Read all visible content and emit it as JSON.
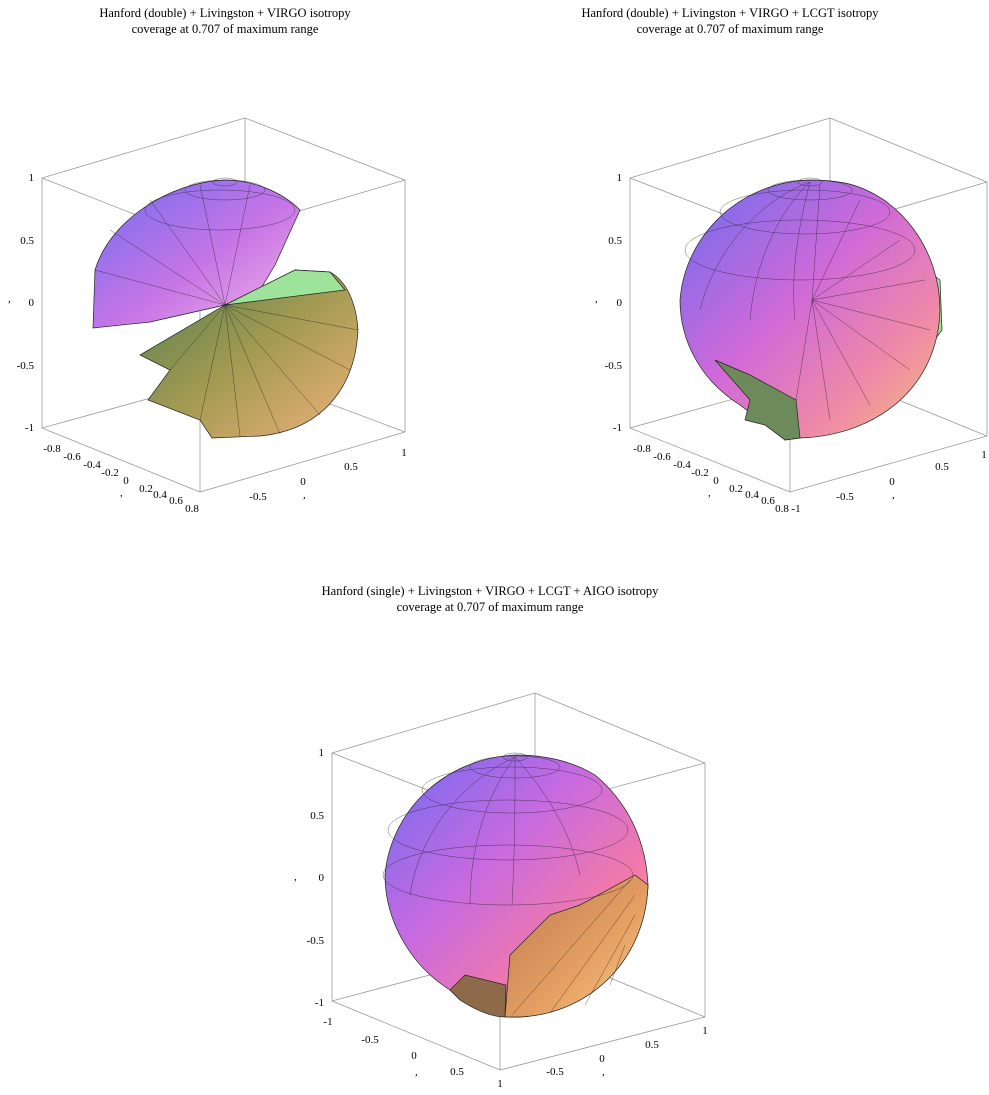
{
  "chart_data": [
    {
      "type": "surface3d",
      "title": "Hanford (double) + Livingston + VIRGO isotropy",
      "subtitle": "coverage at 0.707 of maximum range",
      "axes": {
        "z": {
          "range": [
            -1,
            1
          ],
          "ticks": [
            "1",
            "0.5",
            "0",
            "-0.5",
            "-1"
          ],
          "label": ","
        },
        "x": {
          "range": [
            -0.8,
            0.8
          ],
          "ticks": [
            "-0.8",
            "-0.6",
            "-0.4",
            "-0.2",
            "0",
            "0.2",
            "0.4",
            "0.6",
            "0.8"
          ],
          "label": ","
        },
        "y": {
          "range": [
            -1,
            1
          ],
          "ticks": [
            "-0.5",
            "0",
            "0.5",
            "1"
          ],
          "label": ","
        }
      },
      "detectors": [
        "Hanford (double)",
        "Livingston",
        "VIRGO"
      ],
      "coverage_level": 0.707
    },
    {
      "type": "surface3d",
      "title": "Hanford (double) + Livingston + VIRGO + LCGT isotropy",
      "subtitle": "coverage at 0.707 of maximum range",
      "axes": {
        "z": {
          "range": [
            -1,
            1
          ],
          "ticks": [
            "1",
            "0.5",
            "0",
            "-0.5",
            "-1"
          ],
          "label": ","
        },
        "x": {
          "range": [
            -0.8,
            0.8
          ],
          "ticks": [
            "-0.8",
            "-0.6",
            "-0.4",
            "-0.2",
            "0",
            "0.2",
            "0.4",
            "0.6",
            "0.8"
          ],
          "label": ","
        },
        "y": {
          "range": [
            -1,
            1
          ],
          "ticks": [
            "-1",
            "-0.5",
            "0",
            "0.5",
            "1"
          ],
          "label": ","
        }
      },
      "detectors": [
        "Hanford (double)",
        "Livingston",
        "VIRGO",
        "LCGT"
      ],
      "coverage_level": 0.707
    },
    {
      "type": "surface3d",
      "title": "Hanford (single) + Livingston + VIRGO + LCGT + AIGO isotropy",
      "subtitle": "coverage at 0.707 of maximum range",
      "axes": {
        "z": {
          "range": [
            -1,
            1
          ],
          "ticks": [
            "1",
            "0.5",
            "0",
            "-0.5",
            "-1"
          ],
          "label": ","
        },
        "x": {
          "range": [
            -1,
            1
          ],
          "ticks": [
            "-1",
            "-0.5",
            "0",
            "0.5",
            "1"
          ],
          "label": ","
        },
        "y": {
          "range": [
            -1,
            1
          ],
          "ticks": [
            "-0.5",
            "0",
            "0.5",
            "1"
          ],
          "label": ","
        }
      },
      "detectors": [
        "Hanford (single)",
        "Livingston",
        "VIRGO",
        "LCGT",
        "AIGO"
      ],
      "coverage_level": 0.707
    }
  ],
  "colors": {
    "upper": "#9f7ff0",
    "middle": "#e46ad1",
    "lower_gold": "#e6b66b",
    "lower_green": "#7fd98a",
    "mesh": "#222222"
  }
}
